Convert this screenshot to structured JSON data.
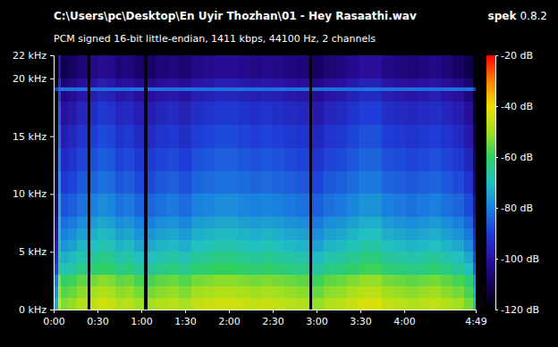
{
  "chart_data": {
    "type": "heatmap",
    "title": "C:\\Users\\pc\\Desktop\\En Uyir Thozhan\\01 - Hey Rasaathi.wav",
    "subtitle": "PCM signed 16-bit little-endian, 1411 kbps, 44100 Hz, 2 channels",
    "annotations": [
      "spek",
      "0.8.2"
    ],
    "grid": false,
    "xlim": [
      0,
      289
    ],
    "xticks": [
      {
        "value": 0,
        "label": "0:00"
      },
      {
        "value": 30,
        "label": "0:30"
      },
      {
        "value": 60,
        "label": "1:00"
      },
      {
        "value": 90,
        "label": "1:30"
      },
      {
        "value": 120,
        "label": "2:00"
      },
      {
        "value": 150,
        "label": "2:30"
      },
      {
        "value": 180,
        "label": "3:00"
      },
      {
        "value": 210,
        "label": "3:30"
      },
      {
        "value": 240,
        "label": "4:00"
      },
      {
        "value": 289,
        "label": "4:49"
      }
    ],
    "ylim": [
      0,
      22
    ],
    "yticks": [
      {
        "value": 0,
        "label": "0 kHz"
      },
      {
        "value": 5,
        "label": "5 kHz"
      },
      {
        "value": 10,
        "label": "10 kHz"
      },
      {
        "value": 15,
        "label": "15 kHz"
      },
      {
        "value": 20,
        "label": "20 kHz"
      },
      {
        "value": 22,
        "label": "22 kHz"
      }
    ],
    "colorbar_range": [
      -120,
      -20
    ],
    "colorbar_ticks": [
      {
        "value": -20,
        "label": "-20 dB"
      },
      {
        "value": -40,
        "label": "-40 dB"
      },
      {
        "value": -60,
        "label": "-60 dB"
      },
      {
        "value": -80,
        "label": "-80 dB"
      },
      {
        "value": -100,
        "label": "-100 dB"
      },
      {
        "value": -120,
        "label": "-120 dB"
      }
    ],
    "x_bins": [
      0,
      3,
      5,
      10,
      16,
      23,
      25,
      30,
      36,
      42,
      48,
      55,
      62,
      64,
      70,
      78,
      86,
      94,
      102,
      110,
      118,
      126,
      134,
      142,
      150,
      158,
      166,
      175,
      177,
      185,
      193,
      201,
      209,
      217,
      225,
      233,
      241,
      249,
      257,
      265,
      273,
      281,
      287,
      289
    ],
    "y_bins": [
      0,
      1,
      2,
      3,
      4,
      5,
      6,
      7,
      8,
      10,
      12,
      14,
      16,
      18,
      18.9,
      19.2,
      20,
      22
    ],
    "cells": [
      [
        -73,
        -77,
        -81,
        -89,
        -93,
        -97,
        -100,
        -103,
        -107,
        -111,
        -114,
        -117,
        -120,
        -120,
        -90,
        -120,
        -120
      ],
      [
        -43,
        -47,
        -51,
        -59,
        -63,
        -66,
        -68,
        -70,
        -73,
        -76,
        -79,
        -82,
        -85,
        -89,
        -82,
        -92,
        -98
      ],
      [
        -53,
        -57,
        -61,
        -69,
        -73,
        -77,
        -80,
        -83,
        -87,
        -91,
        -94,
        -97,
        -100,
        -104,
        -82,
        -106,
        -111
      ],
      [
        -51,
        -55,
        -59,
        -67,
        -71,
        -75,
        -78,
        -81,
        -85,
        -89,
        -92,
        -95,
        -98,
        -102,
        -82,
        -104,
        -109
      ],
      [
        -48,
        -52,
        -56,
        -64,
        -68,
        -72,
        -75,
        -78,
        -82,
        -86,
        -89,
        -92,
        -95,
        -99,
        -82,
        -101,
        -106
      ],
      [
        -118,
        -118,
        -118,
        -118,
        -118,
        -118,
        -118,
        -118,
        -118,
        -118,
        -118,
        -118,
        -118,
        -118,
        -118,
        -118,
        -118
      ],
      [
        -46,
        -50,
        -54,
        -62,
        -66,
        -70,
        -73,
        -76,
        -80,
        -84,
        -87,
        -90,
        -93,
        -97,
        -82,
        -99,
        -104
      ],
      [
        -44,
        -48,
        -52,
        -60,
        -64,
        -68,
        -71,
        -74,
        -78,
        -82,
        -85,
        -88,
        -91,
        -95,
        -82,
        -97,
        -102
      ],
      [
        -45,
        -49,
        -53,
        -61,
        -65,
        -69,
        -72,
        -75,
        -79,
        -83,
        -86,
        -89,
        -92,
        -96,
        -82,
        -98,
        -103
      ],
      [
        -48,
        -52,
        -56,
        -64,
        -68,
        -72,
        -75,
        -78,
        -82,
        -86,
        -89,
        -92,
        -95,
        -99,
        -82,
        -101,
        -106
      ],
      [
        -47,
        -51,
        -55,
        -63,
        -67,
        -71,
        -74,
        -77,
        -81,
        -85,
        -88,
        -91,
        -94,
        -98,
        -82,
        -100,
        -105
      ],
      [
        -50,
        -54,
        -58,
        -66,
        -70,
        -74,
        -77,
        -80,
        -84,
        -88,
        -91,
        -94,
        -97,
        -101,
        -82,
        -103,
        -108
      ],
      [
        -118,
        -118,
        -118,
        -118,
        -118,
        -118,
        -118,
        -118,
        -118,
        -118,
        -118,
        -118,
        -118,
        -118,
        -118,
        -118,
        -118
      ],
      [
        -50,
        -54,
        -58,
        -66,
        -70,
        -74,
        -77,
        -80,
        -84,
        -88,
        -91,
        -94,
        -97,
        -101,
        -82,
        -103,
        -108
      ],
      [
        -48,
        -52,
        -56,
        -64,
        -68,
        -72,
        -75,
        -78,
        -82,
        -86,
        -89,
        -92,
        -95,
        -99,
        -82,
        -101,
        -106
      ],
      [
        -47,
        -51,
        -55,
        -63,
        -67,
        -71,
        -74,
        -77,
        -81,
        -85,
        -88,
        -91,
        -94,
        -98,
        -82,
        -100,
        -105
      ],
      [
        -49,
        -53,
        -57,
        -65,
        -69,
        -73,
        -76,
        -79,
        -83,
        -87,
        -90,
        -93,
        -96,
        -100,
        -82,
        -102,
        -107
      ],
      [
        -46,
        -50,
        -54,
        -62,
        -66,
        -70,
        -73,
        -76,
        -80,
        -84,
        -87,
        -90,
        -93,
        -97,
        -82,
        -99,
        -104
      ],
      [
        -45,
        -49,
        -53,
        -61,
        -65,
        -69,
        -72,
        -75,
        -79,
        -83,
        -86,
        -89,
        -92,
        -96,
        -82,
        -98,
        -103
      ],
      [
        -44,
        -48,
        -52,
        -60,
        -64,
        -68,
        -71,
        -74,
        -78,
        -82,
        -85,
        -88,
        -91,
        -95,
        -82,
        -97,
        -102
      ],
      [
        -44,
        -48,
        -52,
        -60,
        -64,
        -68,
        -71,
        -74,
        -78,
        -82,
        -85,
        -88,
        -91,
        -95,
        -82,
        -97,
        -102
      ],
      [
        -45,
        -49,
        -53,
        -61,
        -65,
        -69,
        -72,
        -75,
        -79,
        -83,
        -86,
        -89,
        -92,
        -96,
        -82,
        -98,
        -103
      ],
      [
        -46,
        -50,
        -54,
        -62,
        -66,
        -70,
        -73,
        -76,
        -80,
        -84,
        -87,
        -90,
        -93,
        -97,
        -82,
        -99,
        -104
      ],
      [
        -45,
        -49,
        -53,
        -61,
        -65,
        -69,
        -72,
        -75,
        -79,
        -83,
        -86,
        -89,
        -92,
        -96,
        -82,
        -98,
        -103
      ],
      [
        -46,
        -50,
        -54,
        -62,
        -66,
        -70,
        -73,
        -76,
        -80,
        -84,
        -87,
        -90,
        -93,
        -97,
        -82,
        -99,
        -104
      ],
      [
        -47,
        -51,
        -55,
        -63,
        -67,
        -71,
        -74,
        -77,
        -81,
        -85,
        -88,
        -91,
        -94,
        -98,
        -82,
        -100,
        -105
      ],
      [
        -48,
        -52,
        -56,
        -64,
        -68,
        -72,
        -75,
        -78,
        -82,
        -86,
        -89,
        -92,
        -95,
        -99,
        -82,
        -101,
        -106
      ],
      [
        -118,
        -118,
        -118,
        -118,
        -118,
        -118,
        -118,
        -118,
        -118,
        -118,
        -118,
        -118,
        -118,
        -118,
        -118,
        -118,
        -118
      ],
      [
        -51,
        -55,
        -59,
        -67,
        -71,
        -75,
        -78,
        -81,
        -85,
        -89,
        -92,
        -95,
        -98,
        -102,
        -82,
        -104,
        -109
      ],
      [
        -48,
        -52,
        -56,
        -64,
        -68,
        -72,
        -75,
        -78,
        -82,
        -86,
        -89,
        -92,
        -95,
        -99,
        -82,
        -101,
        -106
      ],
      [
        -47,
        -51,
        -55,
        -63,
        -67,
        -71,
        -74,
        -77,
        -81,
        -85,
        -88,
        -91,
        -94,
        -98,
        -82,
        -100,
        -105
      ],
      [
        -45,
        -49,
        -53,
        -61,
        -65,
        -69,
        -72,
        -75,
        -79,
        -83,
        -86,
        -89,
        -92,
        -96,
        -82,
        -98,
        -103
      ],
      [
        -43,
        -47,
        -51,
        -59,
        -63,
        -67,
        -70,
        -73,
        -77,
        -81,
        -84,
        -87,
        -90,
        -94,
        -82,
        -96,
        -101
      ],
      [
        -43,
        -47,
        -51,
        -59,
        -63,
        -67,
        -70,
        -73,
        -77,
        -81,
        -84,
        -87,
        -90,
        -94,
        -82,
        -96,
        -101
      ],
      [
        -46,
        -50,
        -54,
        -62,
        -66,
        -70,
        -73,
        -76,
        -80,
        -84,
        -87,
        -90,
        -93,
        -97,
        -82,
        -99,
        -104
      ],
      [
        -47,
        -51,
        -55,
        -63,
        -67,
        -71,
        -74,
        -77,
        -81,
        -85,
        -88,
        -91,
        -94,
        -98,
        -82,
        -100,
        -105
      ],
      [
        -48,
        -52,
        -56,
        -64,
        -68,
        -72,
        -75,
        -78,
        -82,
        -86,
        -89,
        -92,
        -95,
        -99,
        -82,
        -101,
        -106
      ],
      [
        -47,
        -51,
        -55,
        -63,
        -67,
        -71,
        -74,
        -77,
        -81,
        -85,
        -88,
        -91,
        -94,
        -98,
        -82,
        -100,
        -105
      ],
      [
        -46,
        -50,
        -54,
        -62,
        -66,
        -70,
        -73,
        -76,
        -80,
        -84,
        -87,
        -90,
        -93,
        -97,
        -82,
        -99,
        -104
      ],
      [
        -48,
        -52,
        -56,
        -64,
        -68,
        -72,
        -75,
        -78,
        -82,
        -86,
        -89,
        -92,
        -95,
        -99,
        -82,
        -101,
        -106
      ],
      [
        -50,
        -54,
        -58,
        -66,
        -70,
        -74,
        -77,
        -80,
        -84,
        -88,
        -91,
        -94,
        -97,
        -101,
        -82,
        -103,
        -108
      ],
      [
        -54,
        -58,
        -62,
        -70,
        -74,
        -78,
        -81,
        -84,
        -88,
        -92,
        -95,
        -98,
        -101,
        -105,
        -82,
        -107,
        -112
      ],
      [
        -68,
        -72,
        -76,
        -84,
        -88,
        -92,
        -95,
        -98,
        -102,
        -106,
        -109,
        -112,
        -115,
        -119,
        -90,
        -120,
        -120
      ]
    ]
  }
}
